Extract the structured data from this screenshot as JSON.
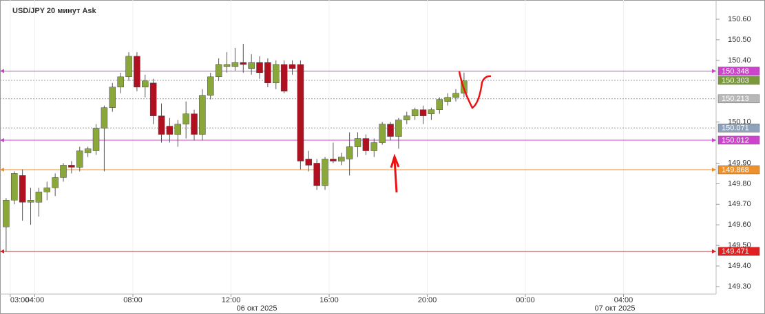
{
  "chart_data": {
    "type": "candlestick",
    "title": "USD/JPY  20 минут Ask",
    "x": [
      "02:40",
      "03:00",
      "03:20",
      "03:40",
      "04:00",
      "04:20",
      "04:40",
      "05:00",
      "05:20",
      "05:40",
      "06:00",
      "06:20",
      "06:40",
      "07:00",
      "07:20",
      "07:40",
      "08:00",
      "08:20",
      "08:40",
      "09:00",
      "09:20",
      "09:40",
      "10:00",
      "10:20",
      "10:40",
      "11:00",
      "11:20",
      "11:40",
      "12:00",
      "12:20",
      "12:40",
      "13:00",
      "13:20",
      "13:40",
      "14:00",
      "14:20",
      "14:40",
      "15:00",
      "15:20",
      "15:40",
      "16:00",
      "16:20",
      "16:40",
      "17:00",
      "17:20",
      "17:40",
      "18:00",
      "18:20",
      "18:40",
      "19:00",
      "19:20",
      "19:40",
      "20:00",
      "20:20",
      "20:40",
      "21:00",
      "21:20"
    ],
    "open": [
      149.59,
      149.72,
      149.84,
      149.71,
      149.71,
      149.76,
      149.78,
      149.83,
      149.89,
      149.88,
      149.95,
      149.96,
      150.07,
      150.17,
      150.27,
      150.32,
      150.42,
      150.27,
      150.29,
      150.13,
      150.08,
      150.04,
      150.09,
      150.14,
      150.04,
      150.23,
      150.32,
      150.37,
      150.37,
      150.39,
      150.36,
      150.39,
      150.39,
      150.29,
      150.38,
      150.38,
      150.38,
      149.92,
      149.9,
      149.79,
      149.92,
      149.91,
      149.92,
      149.98,
      150.02,
      149.96,
      150.0,
      150.09,
      150.03,
      150.11,
      150.13,
      150.16,
      150.14,
      150.16,
      150.2,
      150.22,
      150.24
    ],
    "high": [
      149.73,
      149.86,
      149.87,
      149.78,
      149.78,
      149.81,
      149.85,
      149.9,
      149.91,
      149.98,
      149.98,
      150.09,
      150.18,
      150.29,
      150.34,
      150.44,
      150.44,
      150.33,
      150.31,
      150.19,
      150.12,
      150.11,
      150.2,
      150.16,
      150.26,
      150.34,
      150.41,
      150.44,
      150.46,
      150.48,
      150.43,
      150.42,
      150.41,
      150.4,
      150.4,
      150.4,
      150.4,
      149.96,
      149.92,
      149.93,
      150.0,
      149.95,
      150.05,
      150.05,
      150.04,
      150.02,
      150.1,
      150.1,
      150.12,
      150.15,
      150.17,
      150.18,
      150.17,
      150.22,
      150.24,
      150.26,
      150.34
    ],
    "low": [
      149.47,
      149.7,
      149.62,
      149.6,
      149.64,
      149.72,
      149.74,
      149.81,
      149.85,
      149.86,
      149.93,
      149.94,
      149.86,
      150.15,
      150.24,
      150.3,
      150.25,
      150.22,
      150.09,
      150.0,
      150.0,
      149.98,
      150.02,
      150.01,
      150.01,
      150.21,
      150.3,
      150.34,
      150.35,
      150.34,
      150.33,
      150.31,
      150.27,
      150.26,
      150.24,
      150.33,
      149.87,
      149.86,
      149.77,
      149.77,
      149.9,
      149.89,
      149.84,
      149.93,
      149.94,
      149.93,
      149.99,
      150.01,
      149.97,
      150.09,
      150.11,
      150.09,
      150.11,
      150.14,
      150.18,
      150.2,
      150.22
    ],
    "close": [
      149.72,
      149.85,
      149.71,
      149.72,
      149.76,
      149.78,
      149.83,
      149.89,
      149.88,
      149.96,
      149.97,
      150.07,
      150.17,
      150.27,
      150.32,
      150.42,
      150.27,
      150.3,
      150.13,
      150.04,
      150.04,
      150.09,
      150.14,
      150.04,
      150.23,
      150.32,
      150.38,
      150.38,
      150.39,
      150.38,
      150.39,
      150.34,
      150.29,
      150.38,
      150.25,
      150.36,
      149.91,
      149.89,
      149.79,
      149.92,
      149.91,
      149.93,
      149.98,
      150.02,
      149.96,
      150.0,
      150.09,
      150.03,
      150.11,
      150.13,
      150.16,
      150.13,
      150.16,
      150.21,
      150.22,
      150.24,
      150.3
    ],
    "up_color": "#8aa83a",
    "down_color": "#b01020",
    "ylim": [
      149.265,
      150.665
    ],
    "yticks": [
      {
        "value": 150.6,
        "label": "150.60"
      },
      {
        "value": 150.5,
        "label": "150.50"
      },
      {
        "value": 150.4,
        "label": "150.40"
      },
      {
        "value": 150.1,
        "label": "150.10"
      },
      {
        "value": 149.9,
        "label": "149.90"
      },
      {
        "value": 149.8,
        "label": "149.80"
      },
      {
        "value": 149.7,
        "label": "149.70"
      },
      {
        "value": 149.6,
        "label": "149.60"
      },
      {
        "value": 149.5,
        "label": "149.50"
      },
      {
        "value": 149.4,
        "label": "149.40"
      },
      {
        "value": 149.3,
        "label": "149.30"
      }
    ],
    "xticks": [
      "03:00",
      "04:00",
      "08:00",
      "12:00",
      "16:00",
      "20:00",
      "00:00",
      "04:00"
    ],
    "date_labels": [
      "06 окт 2025",
      "07 окт 2025"
    ],
    "levels": [
      {
        "value": 150.348,
        "color": "#cc44cc",
        "box_color": "#cc44cc",
        "style": "solid"
      },
      {
        "value": 150.303,
        "color": "#999999",
        "box_color": "#7a9a3a",
        "style": "dotted"
      },
      {
        "value": 150.213,
        "color": "#999999",
        "box_color": "#b8b8b8",
        "style": "dotted"
      },
      {
        "value": 150.071,
        "color": "#999999",
        "box_color": "#8ea2bb",
        "style": "dotted"
      },
      {
        "value": 150.012,
        "color": "#cc44cc",
        "box_color": "#cc44cc",
        "style": "solid"
      },
      {
        "value": 149.868,
        "color": "#f0902a",
        "box_color": "#f0902a",
        "style": "solid"
      },
      {
        "value": 149.471,
        "color": "#e02020",
        "box_color": "#e02020",
        "style": "solid"
      }
    ]
  }
}
